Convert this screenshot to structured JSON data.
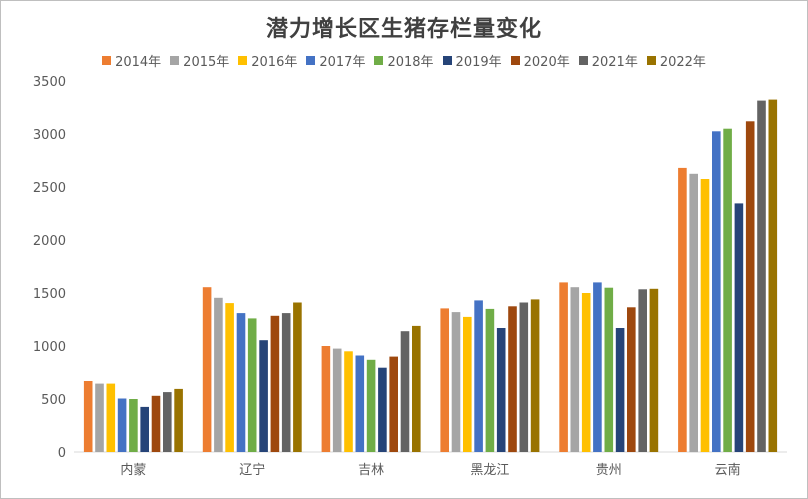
{
  "chart_data": {
    "type": "bar",
    "title": "潜力增长区生猪存栏量变化",
    "xlabel": "",
    "ylabel": "",
    "ylim": [
      0,
      3500
    ],
    "yticks": [
      0,
      500,
      1000,
      1500,
      2000,
      2500,
      3000,
      3500
    ],
    "ytick_labels": [
      "0",
      "500",
      "1000",
      "1500",
      "2000",
      "2500",
      "3000",
      "3500"
    ],
    "grid": false,
    "legend_position": "top",
    "categories": [
      "内蒙",
      "辽宁",
      "吉林",
      "黑龙江",
      "贵州",
      "云南"
    ],
    "series": [
      {
        "name": "2014年",
        "color": "#ED7D31",
        "values": [
          670,
          1555,
          1000,
          1355,
          1600,
          2680
        ]
      },
      {
        "name": "2015年",
        "color": "#A5A5A5",
        "values": [
          645,
          1455,
          975,
          1320,
          1555,
          2625
        ]
      },
      {
        "name": "2016年",
        "color": "#FFC000",
        "values": [
          645,
          1405,
          950,
          1275,
          1500,
          2575
        ]
      },
      {
        "name": "2017年",
        "color": "#4472C4",
        "values": [
          505,
          1310,
          910,
          1430,
          1600,
          3025
        ]
      },
      {
        "name": "2018年",
        "color": "#70AD47",
        "values": [
          500,
          1260,
          870,
          1350,
          1550,
          3050
        ]
      },
      {
        "name": "2019年",
        "color": "#264478",
        "values": [
          425,
          1055,
          795,
          1170,
          1170,
          2345
        ]
      },
      {
        "name": "2020年",
        "color": "#9E480E",
        "values": [
          530,
          1285,
          900,
          1375,
          1365,
          3120
        ]
      },
      {
        "name": "2021年",
        "color": "#636363",
        "values": [
          565,
          1310,
          1140,
          1410,
          1535,
          3315
        ]
      },
      {
        "name": "2022年",
        "color": "#997300",
        "values": [
          595,
          1410,
          1190,
          1440,
          1540,
          3325
        ]
      }
    ]
  }
}
